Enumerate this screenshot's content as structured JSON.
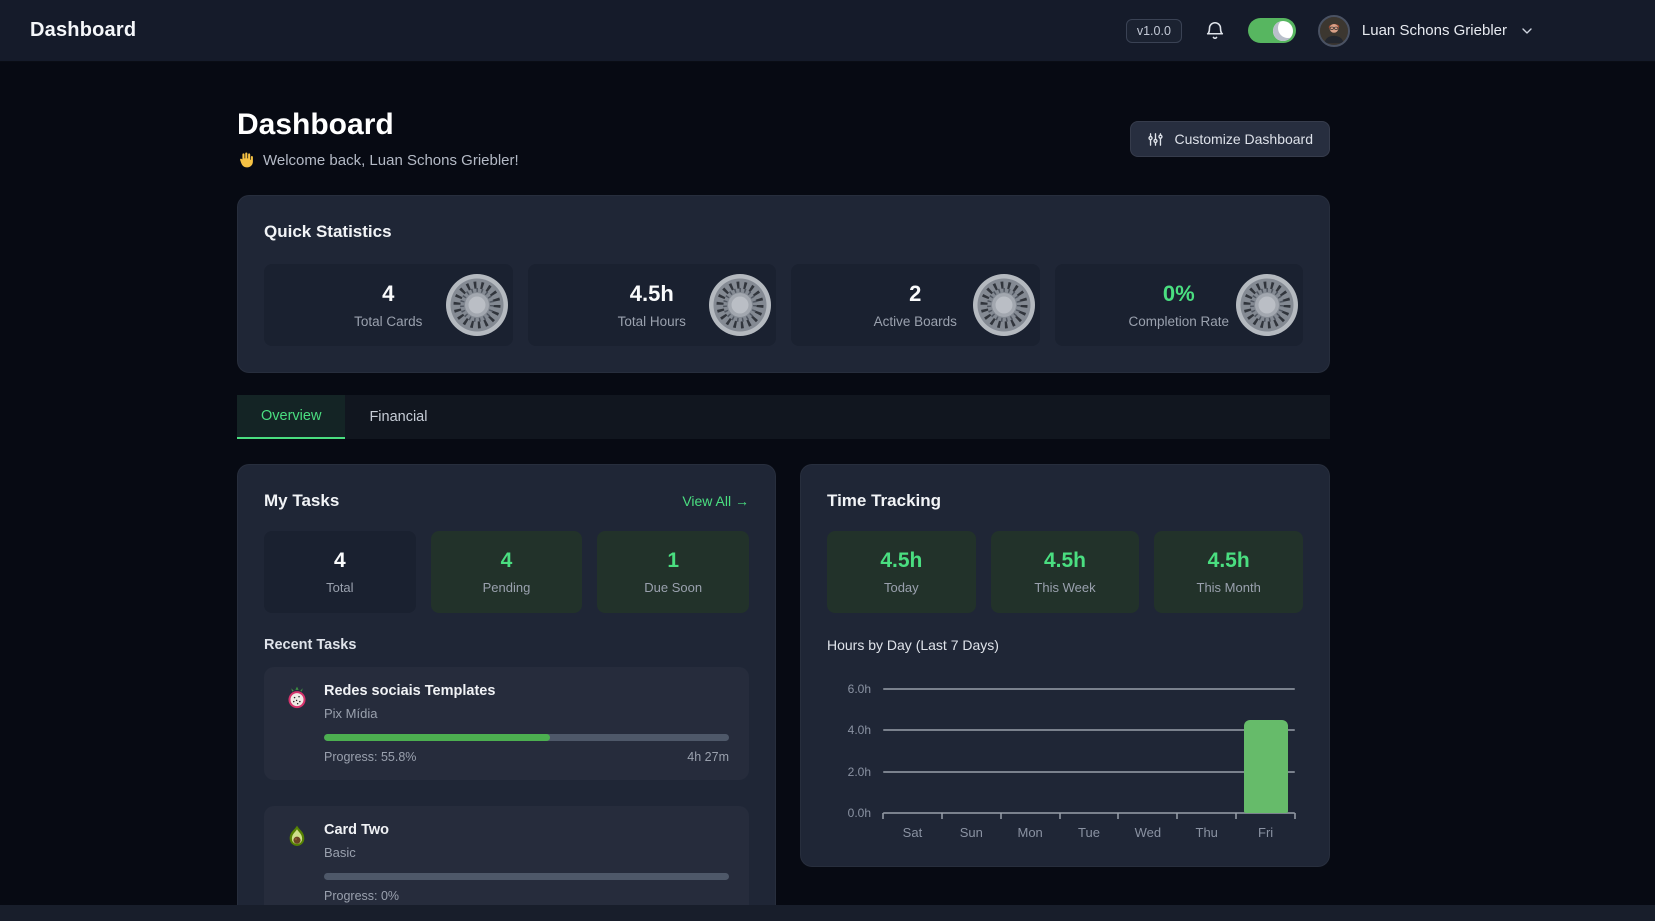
{
  "navbar": {
    "title": "Dashboard",
    "version_badge": "v1.0.0",
    "user_name": "Luan Schons Griebler",
    "theme_toggle_on": true
  },
  "header": {
    "title": "Dashboard",
    "welcome": "Welcome back, Luan Schons Griebler!",
    "customize_button": "Customize Dashboard"
  },
  "quick_stats": {
    "title": "Quick Statistics",
    "items": [
      {
        "value": "4",
        "label": "Total Cards"
      },
      {
        "value": "4.5h",
        "label": "Total Hours"
      },
      {
        "value": "2",
        "label": "Active Boards"
      },
      {
        "value": "0%",
        "label": "Completion Rate"
      }
    ]
  },
  "tabs": [
    {
      "label": "Overview",
      "active": true
    },
    {
      "label": "Financial",
      "active": false
    }
  ],
  "my_tasks": {
    "title": "My Tasks",
    "view_all": "View All →",
    "stats": [
      {
        "value": "4",
        "label": "Total"
      },
      {
        "value": "4",
        "label": "Pending"
      },
      {
        "value": "1",
        "label": "Due Soon"
      }
    ],
    "recent_title": "Recent Tasks",
    "tasks": [
      {
        "icon": "dragonfruit-icon",
        "title": "Redes sociais Templates",
        "subtitle": "Pix Mídia",
        "progress_label": "Progress: 55.8%",
        "progress_pct": 55.8,
        "time": "4h 27m"
      },
      {
        "icon": "avocado-icon",
        "title": "Card Two",
        "subtitle": "Basic",
        "progress_label": "Progress: 0%",
        "progress_pct": 0,
        "time": ""
      }
    ]
  },
  "time_tracking": {
    "title": "Time Tracking",
    "stats": [
      {
        "value": "4.5h",
        "label": "Today"
      },
      {
        "value": "4.5h",
        "label": "This Week"
      },
      {
        "value": "4.5h",
        "label": "This Month"
      }
    ],
    "chart_title": "Hours by Day (Last 7 Days)"
  },
  "chart_data": {
    "type": "bar",
    "title": "Hours by Day (Last 7 Days)",
    "categories": [
      "Sat",
      "Sun",
      "Mon",
      "Tue",
      "Wed",
      "Thu",
      "Fri"
    ],
    "values": [
      0,
      0,
      0,
      0,
      0,
      0,
      4.5
    ],
    "yticks": [
      0,
      2,
      4,
      6
    ],
    "ytick_labels": [
      "0.0h",
      "2.0h",
      "4.0h",
      "6.0h"
    ],
    "ylim": [
      0,
      6
    ],
    "grid": true,
    "legend": false,
    "bar_color": "#66bb6a"
  },
  "icons": {
    "wave": "wave-icon",
    "bell": "bell-icon",
    "sliders": "sliders-icon",
    "chevron": "chevron-down-icon",
    "kiwi": "kiwi-icon",
    "dragonfruit": "dragonfruit-icon",
    "avocado": "avocado-icon"
  },
  "colors": {
    "accent_green": "#4ade80",
    "bar_green": "#66bb6a",
    "progress_green": "#4caf50",
    "toggle_green": "#57b660",
    "panel_bg": "#1f2636",
    "page_bg": "#070a13"
  }
}
